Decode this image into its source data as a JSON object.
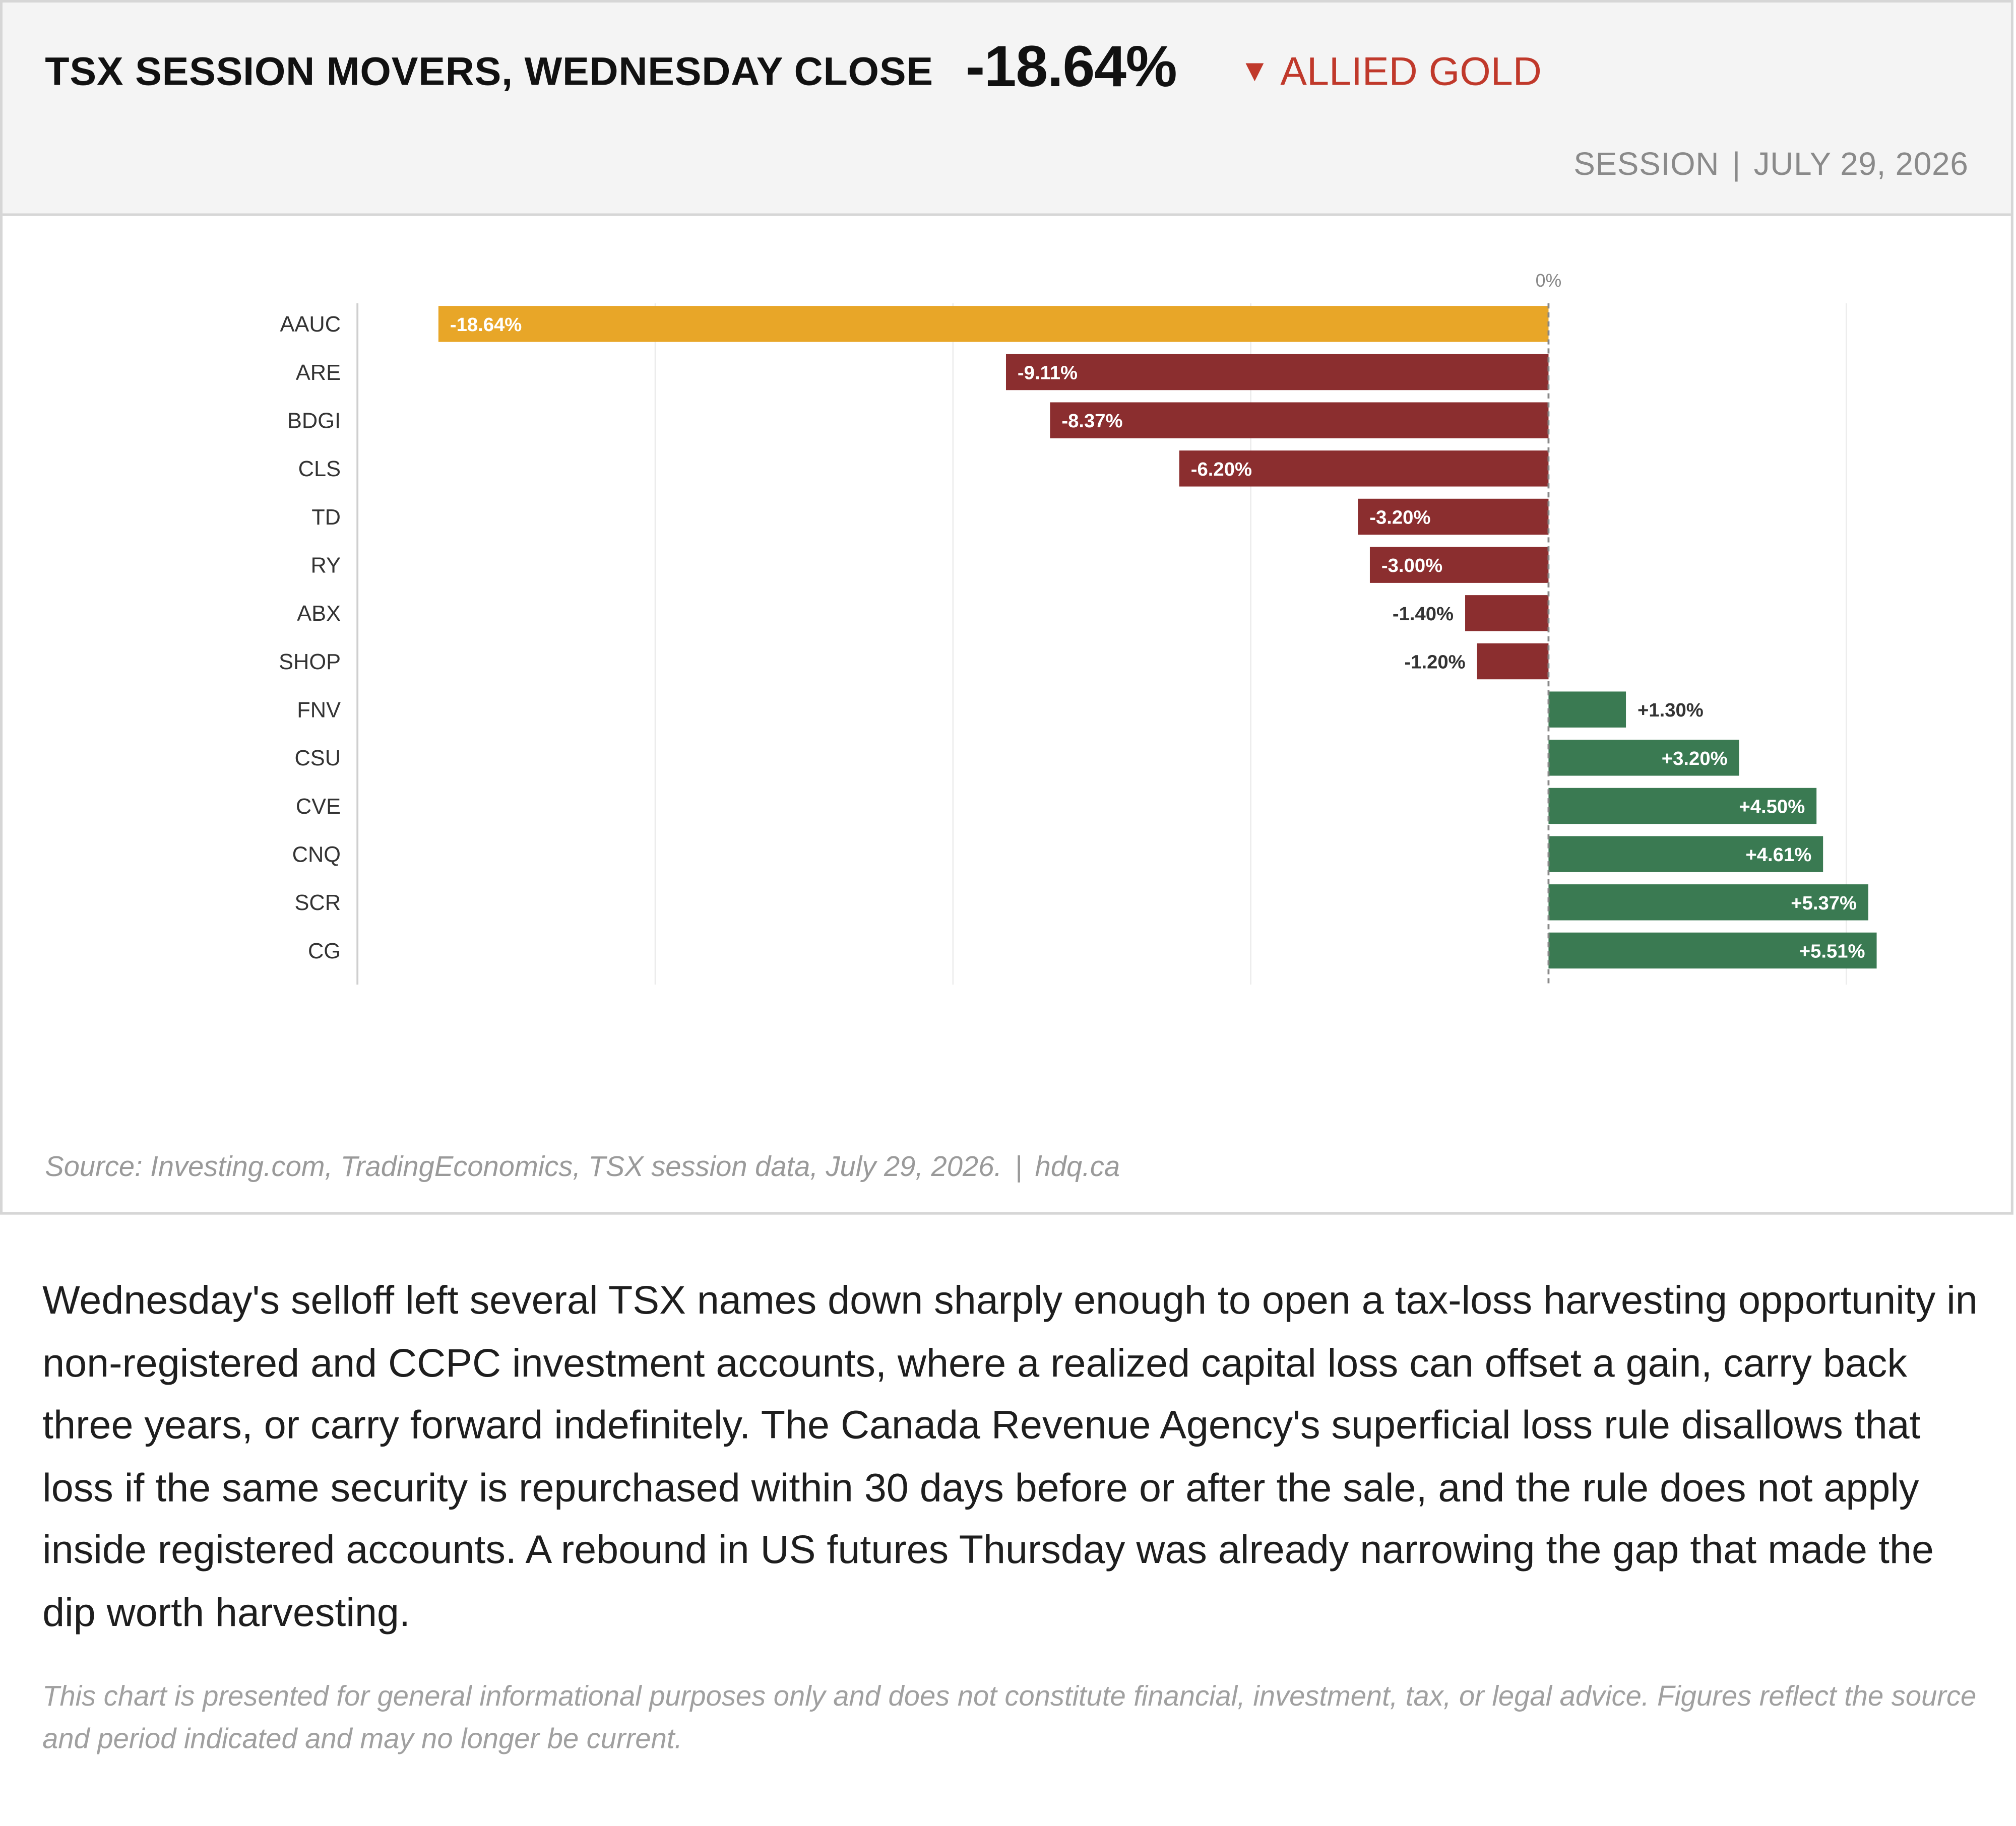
{
  "header": {
    "title": "TSX SESSION MOVERS, WEDNESDAY CLOSE",
    "headline_value": "-18.64%",
    "callout_arrow": "▼",
    "callout_label": "ALLIED GOLD",
    "callout_color": "#c0392b",
    "meta_left": "SESSION",
    "meta_sep": "|",
    "meta_right": "JULY 29, 2026"
  },
  "chart_data": {
    "type": "bar",
    "orientation": "horizontal",
    "zero_label": "0%",
    "categories": [
      "AAUC",
      "ARE",
      "BDGI",
      "CLS",
      "TD",
      "RY",
      "ABX",
      "SHOP",
      "FNV",
      "CSU",
      "CVE",
      "CNQ",
      "SCR",
      "CG"
    ],
    "values": [
      -18.64,
      -9.11,
      -8.37,
      -6.2,
      -3.2,
      -3.0,
      -1.4,
      -1.2,
      1.3,
      3.2,
      4.5,
      4.61,
      5.37,
      5.51
    ],
    "labels": [
      "-18.64%",
      "-9.11%",
      "-8.37%",
      "-6.20%",
      "-3.20%",
      "-3.00%",
      "-1.40%",
      "-1.20%",
      "+1.30%",
      "+3.20%",
      "+4.50%",
      "+4.61%",
      "+5.37%",
      "+5.51%"
    ],
    "xlim": [
      -20,
      5
    ],
    "grid_step": 5,
    "grid": true,
    "colors": {
      "highlight": "#e8a628",
      "negative": "#8b2e2f",
      "positive": "#3a7a52",
      "grid": "#ebebeb",
      "zero_line": "#888888"
    }
  },
  "source": {
    "text": "Source: Investing.com, TradingEconomics, TSX session data, July 29, 2026.",
    "sep": "|",
    "site": "hdq.ca"
  },
  "body_text": "Wednesday's selloff left several TSX names down sharply enough to open a tax-loss harvesting opportunity in non-registered and CCPC investment accounts, where a realized capital loss can offset a gain, carry back three years, or carry forward indefinitely. The Canada Revenue Agency's superficial loss rule disallows that loss if the same security is repurchased within 30 days before or after the sale, and the rule does not apply inside registered accounts. A rebound in US futures Thursday was already narrowing the gap that made the dip worth harvesting.",
  "disclaimer": "This chart is presented for general informational purposes only and does not constitute financial, investment, tax, or legal advice. Figures reflect the source and period indicated and may no longer be current."
}
